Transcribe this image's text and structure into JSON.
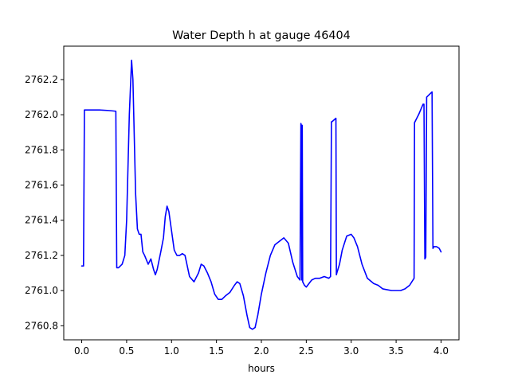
{
  "chart_data": {
    "type": "line",
    "title": "Water Depth h at gauge 46404",
    "xlabel": "hours",
    "ylabel": "",
    "xlim": [
      -0.2,
      4.2
    ],
    "ylim": [
      2760.72,
      2762.39
    ],
    "xticks": [
      0.0,
      0.5,
      1.0,
      1.5,
      2.0,
      2.5,
      3.0,
      3.5,
      4.0
    ],
    "xtick_labels": [
      "0.0",
      "0.5",
      "1.0",
      "1.5",
      "2.0",
      "2.5",
      "3.0",
      "3.5",
      "4.0"
    ],
    "yticks": [
      2760.8,
      2761.0,
      2761.2,
      2761.4,
      2761.6,
      2761.8,
      2762.0,
      2762.2
    ],
    "ytick_labels": [
      "2760.8",
      "2761.0",
      "2761.2",
      "2761.4",
      "2761.6",
      "2761.8",
      "2762.0",
      "2762.2"
    ],
    "grid": false,
    "legend": null,
    "series": [
      {
        "color": "#0000ff",
        "x": [
          0.0,
          0.02,
          0.03,
          0.2,
          0.3,
          0.38,
          0.39,
          0.41,
          0.45,
          0.48,
          0.5,
          0.53,
          0.555,
          0.57,
          0.6,
          0.62,
          0.64,
          0.66,
          0.68,
          0.7,
          0.74,
          0.77,
          0.8,
          0.82,
          0.84,
          0.88,
          0.91,
          0.93,
          0.95,
          0.97,
          1.0,
          1.03,
          1.06,
          1.09,
          1.12,
          1.15,
          1.2,
          1.25,
          1.3,
          1.33,
          1.36,
          1.4,
          1.44,
          1.48,
          1.52,
          1.56,
          1.6,
          1.65,
          1.7,
          1.73,
          1.76,
          1.8,
          1.84,
          1.87,
          1.9,
          1.93,
          1.96,
          2.0,
          2.05,
          2.1,
          2.15,
          2.2,
          2.25,
          2.3,
          2.35,
          2.4,
          2.43,
          2.44,
          2.445,
          2.45,
          2.455,
          2.46,
          2.48,
          2.5,
          2.53,
          2.56,
          2.6,
          2.65,
          2.7,
          2.75,
          2.77,
          2.78,
          2.785,
          2.83,
          2.835,
          2.84,
          2.87,
          2.9,
          2.95,
          3.0,
          3.03,
          3.07,
          3.12,
          3.18,
          3.25,
          3.3,
          3.35,
          3.4,
          3.45,
          3.5,
          3.55,
          3.6,
          3.65,
          3.7,
          3.705,
          3.75,
          3.8,
          3.81,
          3.82,
          3.83,
          3.84,
          3.9,
          3.91,
          3.92,
          3.95,
          3.98,
          4.0
        ],
        "y": [
          2761.14,
          2761.14,
          2762.027,
          2762.027,
          2762.024,
          2762.02,
          2761.13,
          2761.13,
          2761.15,
          2761.2,
          2761.4,
          2762.0,
          2762.31,
          2762.2,
          2761.55,
          2761.35,
          2761.32,
          2761.32,
          2761.22,
          2761.2,
          2761.15,
          2761.18,
          2761.12,
          2761.09,
          2761.12,
          2761.22,
          2761.3,
          2761.42,
          2761.48,
          2761.45,
          2761.34,
          2761.23,
          2761.2,
          2761.2,
          2761.21,
          2761.2,
          2761.08,
          2761.05,
          2761.1,
          2761.15,
          2761.14,
          2761.1,
          2761.05,
          2760.98,
          2760.95,
          2760.95,
          2760.97,
          2760.99,
          2761.03,
          2761.05,
          2761.04,
          2760.97,
          2760.86,
          2760.79,
          2760.78,
          2760.79,
          2760.86,
          2760.98,
          2761.1,
          2761.2,
          2761.26,
          2761.28,
          2761.3,
          2761.27,
          2761.16,
          2761.08,
          2761.06,
          2761.95,
          2761.94,
          2761.06,
          2761.94,
          2761.05,
          2761.03,
          2761.02,
          2761.04,
          2761.06,
          2761.07,
          2761.07,
          2761.08,
          2761.07,
          2761.08,
          2761.96,
          2761.96,
          2761.98,
          2761.09,
          2761.1,
          2761.15,
          2761.23,
          2761.31,
          2761.32,
          2761.3,
          2761.25,
          2761.15,
          2761.07,
          2761.04,
          2761.03,
          2761.01,
          2761.005,
          2761.0,
          2761.0,
          2761.0,
          2761.01,
          2761.03,
          2761.07,
          2761.955,
          2762.0,
          2762.06,
          2762.06,
          2761.18,
          2761.19,
          2762.1,
          2762.13,
          2761.24,
          2761.25,
          2761.25,
          2761.24,
          2761.22
        ]
      }
    ]
  }
}
